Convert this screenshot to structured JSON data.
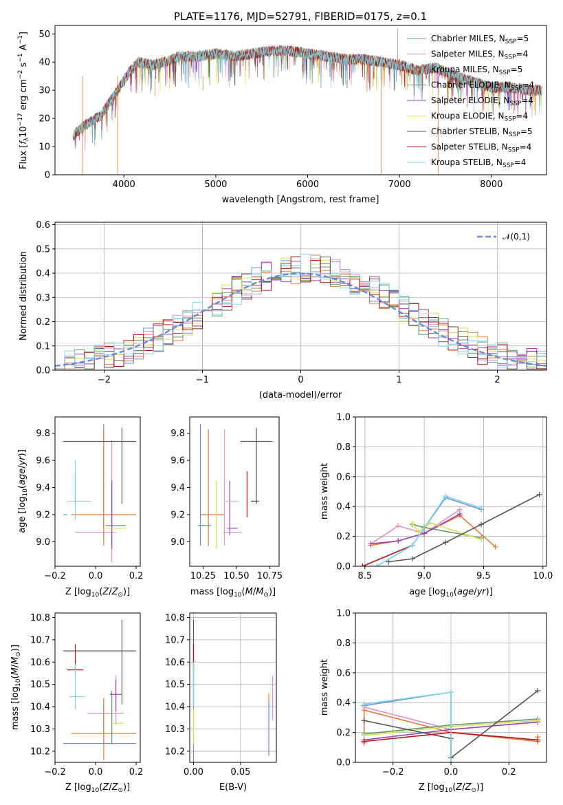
{
  "chart_data": [
    {
      "id": "spectrum",
      "type": "line",
      "title": "PLATE=1176, MJD=52791, FIBERID=0175, z=0.1",
      "xlabel": "wavelength [Angstrom, rest frame]",
      "ylabel": "Flux [f_λ10^-17 erg cm^-2 s^-1 A^-1]",
      "xlim": [
        3250,
        8600
      ],
      "ylim": [
        0,
        53
      ],
      "xticks": [
        4000,
        5000,
        6000,
        7000,
        8000
      ],
      "yticks": [
        0,
        10,
        20,
        30,
        40,
        50
      ],
      "legend_position": "upper right",
      "legend": [
        {
          "label": "Chabrier MILES, N",
          "sub": "SSP",
          "suffix": "=5",
          "color": "#6f8fdd"
        },
        {
          "label": "Salpeter MILES, N",
          "sub": "SSP",
          "suffix": "=4",
          "color": "#e690c0"
        },
        {
          "label": "Kroupa MILES, N",
          "sub": "SSP",
          "suffix": "=5",
          "color": "#e07b39"
        },
        {
          "label": "Chabrier ELODIE, N",
          "sub": "SSP",
          "suffix": "=4",
          "color": "#5c9a6a"
        },
        {
          "label": "Salpeter ELODIE, N",
          "sub": "SSP",
          "suffix": "=4",
          "color": "#a040c0"
        },
        {
          "label": "Kroupa ELODIE, N",
          "sub": "SSP",
          "suffix": "=4",
          "color": "#d8e050"
        },
        {
          "label": "Chabrier STELIB, N",
          "sub": "SSP",
          "suffix": "=5",
          "color": "#555555"
        },
        {
          "label": "Salpeter STELIB, N",
          "sub": "SSP",
          "suffix": "=4",
          "color": "#b01515"
        },
        {
          "label": "Kroupa STELIB, N",
          "sub": "SSP",
          "suffix": "=4",
          "color": "#80d8e8"
        }
      ],
      "continuum": {
        "x": [
          3450,
          3550,
          3650,
          3750,
          3850,
          3950,
          4050,
          4150,
          4300,
          4450,
          4600,
          4800,
          5000,
          5200,
          5400,
          5600,
          5800,
          6000,
          6200,
          6400,
          6600,
          6800,
          7000,
          7200,
          7400,
          7600,
          7800,
          8000,
          8200,
          8400,
          8550
        ],
        "y": [
          14,
          17,
          19,
          21,
          26,
          31,
          36,
          40,
          39,
          40,
          42,
          42,
          43,
          42,
          43,
          44,
          44,
          43,
          42,
          41,
          41,
          40,
          39,
          37,
          38,
          35,
          33,
          31,
          31,
          30,
          30
        ]
      }
    },
    {
      "id": "residuals",
      "type": "histogram",
      "xlabel": "(data-model)/error",
      "ylabel": "Normed distribution",
      "xlim": [
        -2.5,
        2.5
      ],
      "ylim": [
        0,
        0.61
      ],
      "xticks": [
        -2,
        -1,
        0,
        1,
        2
      ],
      "yticks": [
        0.0,
        0.1,
        0.2,
        0.3,
        0.4,
        0.5,
        0.6
      ],
      "grid": true,
      "reference": {
        "label": "𝒩(0,1)",
        "mean": 0,
        "sigma": 1,
        "color": "#6a8ad8"
      },
      "legend_position": "upper right",
      "bin_width": 0.1
    },
    {
      "id": "age_vs_Z",
      "type": "scatter",
      "xlabel": "Z [log10(Z/Z⊙)]",
      "ylabel": "age [log10(age/yr)]",
      "xlim": [
        -0.2,
        0.22
      ],
      "ylim": [
        8.82,
        9.92
      ],
      "xticks": [
        -0.2,
        0.0,
        0.2
      ],
      "xtick_labels": [
        "−0.2",
        "0.0",
        "0.2"
      ],
      "yticks": [
        9.0,
        9.2,
        9.4,
        9.6,
        9.8
      ],
      "errorbars": [
        {
          "x": 0.04,
          "xerr": 0.0,
          "y": 9.45,
          "yerr": 0.42,
          "color": "#6f8fdd"
        },
        {
          "x": -0.15,
          "xerr": 0.0,
          "y": 9.2,
          "yerr": 0.0,
          "color": "#6f8fdd"
        },
        {
          "x": 0.08,
          "xerr": 0.0,
          "y": 9.3,
          "yerr": 0.45,
          "color": "#e690c0"
        },
        {
          "x": 0.0,
          "xerr": 0.1,
          "y": 9.07,
          "yerr": 0.0,
          "color": "#e690c0"
        },
        {
          "x": 0.04,
          "xerr": 0.0,
          "y": 9.4,
          "yerr": 0.43,
          "color": "#e07b39"
        },
        {
          "x": 0.04,
          "xerr": 0.16,
          "y": 9.2,
          "yerr": 0.0,
          "color": "#e07b39"
        },
        {
          "x": 0.1,
          "xerr": 0.05,
          "y": 9.12,
          "yerr": 0.0,
          "color": "#5c9a6a"
        },
        {
          "x": 0.08,
          "xerr": 0.0,
          "y": 9.2,
          "yerr": 0.25,
          "color": "#a040c0"
        },
        {
          "x": 0.1,
          "xerr": 0.05,
          "y": 9.1,
          "yerr": 0.0,
          "color": "#d8e050"
        },
        {
          "x": 0.13,
          "xerr": 0.0,
          "y": 9.56,
          "yerr": 0.28,
          "color": "#555555"
        },
        {
          "x": 0.02,
          "xerr": 0.18,
          "y": 9.74,
          "yerr": 0.0,
          "color": "#555555"
        },
        {
          "x": -0.1,
          "xerr": 0.0,
          "y": 9.4,
          "yerr": 0.12,
          "color": "#b01515"
        },
        {
          "x": -0.1,
          "xerr": 0.0,
          "y": 9.38,
          "yerr": 0.22,
          "color": "#80d8e8"
        },
        {
          "x": -0.08,
          "xerr": 0.06,
          "y": 9.3,
          "yerr": 0.0,
          "color": "#80d8e8"
        }
      ]
    },
    {
      "id": "age_vs_mass",
      "type": "scatter",
      "xlabel": "mass [log10(M/M⊙)]",
      "ylabel": "",
      "xlim": [
        10.15,
        10.82
      ],
      "ylim": [
        8.82,
        9.92
      ],
      "xticks": [
        10.25,
        10.5,
        10.75
      ],
      "xtick_labels": [
        "10.25",
        "10.50",
        "10.75"
      ],
      "yticks": [
        9.0,
        9.2,
        9.4,
        9.6,
        9.8
      ],
      "errorbars": [
        {
          "x": 10.23,
          "xerr": 0.0,
          "y": 9.42,
          "yerr": 0.45,
          "color": "#6f8fdd"
        },
        {
          "x": 10.41,
          "xerr": 0.0,
          "y": 9.4,
          "yerr": 0.43,
          "color": "#e690c0"
        },
        {
          "x": 10.47,
          "xerr": 0.07,
          "y": 9.07,
          "yerr": 0.0,
          "color": "#e690c0"
        },
        {
          "x": 10.29,
          "xerr": 0.0,
          "y": 9.4,
          "yerr": 0.43,
          "color": "#e07b39"
        },
        {
          "x": 10.32,
          "xerr": 0.09,
          "y": 9.2,
          "yerr": 0.0,
          "color": "#e07b39"
        },
        {
          "x": 10.26,
          "xerr": 0.05,
          "y": 9.12,
          "yerr": 0.0,
          "color": "#5c9a6a"
        },
        {
          "x": 10.45,
          "xerr": 0.0,
          "y": 9.25,
          "yerr": 0.2,
          "color": "#a040c0"
        },
        {
          "x": 10.47,
          "xerr": 0.04,
          "y": 9.1,
          "yerr": 0.0,
          "color": "#a040c0"
        },
        {
          "x": 10.35,
          "xerr": 0.0,
          "y": 9.2,
          "yerr": 0.25,
          "color": "#d8e050"
        },
        {
          "x": 10.65,
          "xerr": 0.0,
          "y": 9.56,
          "yerr": 0.28,
          "color": "#555555"
        },
        {
          "x": 10.65,
          "xerr": 0.12,
          "y": 9.74,
          "yerr": 0.0,
          "color": "#555555"
        },
        {
          "x": 10.58,
          "xerr": 0.0,
          "y": 9.35,
          "yerr": 0.17,
          "color": "#b01515"
        },
        {
          "x": 10.64,
          "xerr": 0.03,
          "y": 9.3,
          "yerr": 0.0,
          "color": "#b01515"
        },
        {
          "x": 10.47,
          "xerr": 0.05,
          "y": 9.3,
          "yerr": 0.0,
          "color": "#80d8e8"
        }
      ]
    },
    {
      "id": "weight_vs_age",
      "type": "line",
      "xlabel": "age [log10(age/yr)]",
      "ylabel": "mass weight",
      "xlim": [
        8.42,
        10.03
      ],
      "ylim": [
        0,
        1
      ],
      "xticks": [
        8.5,
        9.0,
        9.5,
        10.0
      ],
      "xtick_labels": [
        "8.5",
        "9.0",
        "9.5",
        "10.0"
      ],
      "yticks": [
        0.0,
        0.2,
        0.4,
        0.6,
        0.8,
        1.0
      ],
      "grid": true,
      "series": [
        {
          "color": "#6f8fdd",
          "x": [
            8.6,
            8.9,
            9.18,
            9.48
          ],
          "y": [
            0.0,
            0.14,
            0.46,
            0.38
          ]
        },
        {
          "color": "#e690c0",
          "x": [
            8.55,
            8.78,
            9.0,
            9.3
          ],
          "y": [
            0.15,
            0.27,
            0.22,
            0.38
          ]
        },
        {
          "color": "#e07b39",
          "x": [
            8.55,
            8.78,
            9.0,
            9.3,
            9.6
          ],
          "y": [
            0.14,
            0.17,
            0.22,
            0.34,
            0.13
          ]
        },
        {
          "color": "#5c9a6a",
          "x": [
            8.9,
            9.0,
            9.48
          ],
          "y": [
            0.28,
            0.26,
            0.19
          ]
        },
        {
          "color": "#a040c0",
          "x": [
            8.55,
            8.78,
            9.0,
            9.3
          ],
          "y": [
            0.15,
            0.17,
            0.22,
            0.35
          ]
        },
        {
          "color": "#d8e050",
          "x": [
            8.9,
            8.95,
            9.05,
            9.48
          ],
          "y": [
            0.29,
            0.23,
            0.29,
            0.18
          ]
        },
        {
          "color": "#555555",
          "x": [
            8.7,
            8.9,
            9.18,
            9.48,
            9.97
          ],
          "y": [
            0.03,
            0.05,
            0.16,
            0.28,
            0.48
          ]
        },
        {
          "color": "#b01515",
          "x": [
            8.48,
            8.9
          ],
          "y": [
            0.0,
            0.14
          ]
        },
        {
          "color": "#80d8e8",
          "x": [
            8.6,
            8.9,
            9.18,
            9.48
          ],
          "y": [
            0.0,
            0.14,
            0.47,
            0.39
          ]
        }
      ]
    },
    {
      "id": "mass_vs_Z",
      "type": "scatter",
      "xlabel": "Z [log10(Z/Z⊙)]",
      "ylabel": "mass [log10(M/M⊙)]",
      "xlim": [
        -0.2,
        0.22
      ],
      "ylim": [
        10.15,
        10.82
      ],
      "xticks": [
        -0.2,
        0.0,
        0.2
      ],
      "xtick_labels": [
        "−0.2",
        "0.0",
        "0.2"
      ],
      "yticks": [
        10.2,
        10.3,
        10.4,
        10.5,
        10.6,
        10.7,
        10.8
      ],
      "errorbars": [
        {
          "x": 0.02,
          "xerr": 0.18,
          "y": 10.235,
          "yerr": 0.0,
          "color": "#6f8fdd"
        },
        {
          "x": 0.04,
          "xerr": 0.0,
          "y": 10.33,
          "yerr": 0.1,
          "color": "#6f8fdd"
        },
        {
          "x": 0.05,
          "xerr": 0.09,
          "y": 10.37,
          "yerr": 0.0,
          "color": "#e690c0"
        },
        {
          "x": 0.1,
          "xerr": 0.0,
          "y": 10.43,
          "yerr": 0.11,
          "color": "#e690c0"
        },
        {
          "x": 0.04,
          "xerr": 0.16,
          "y": 10.28,
          "yerr": 0.0,
          "color": "#e07b39"
        },
        {
          "x": 0.04,
          "xerr": 0.0,
          "y": 10.3,
          "yerr": 0.14,
          "color": "#e07b39"
        },
        {
          "x": 0.08,
          "xerr": 0.0,
          "y": 10.35,
          "yerr": 0.12,
          "color": "#5c9a6a"
        },
        {
          "x": 0.1,
          "xerr": 0.03,
          "y": 10.455,
          "yerr": 0.0,
          "color": "#a040c0"
        },
        {
          "x": 0.1,
          "xerr": 0.0,
          "y": 10.45,
          "yerr": 0.07,
          "color": "#a040c0"
        },
        {
          "x": 0.11,
          "xerr": 0.03,
          "y": 10.325,
          "yerr": 0.0,
          "color": "#d8e050"
        },
        {
          "x": 0.13,
          "xerr": 0.0,
          "y": 10.6,
          "yerr": 0.19,
          "color": "#555555"
        },
        {
          "x": 0.02,
          "xerr": 0.18,
          "y": 10.65,
          "yerr": 0.0,
          "color": "#555555"
        },
        {
          "x": -0.1,
          "xerr": 0.04,
          "y": 10.565,
          "yerr": 0.0,
          "color": "#b01515"
        },
        {
          "x": -0.1,
          "xerr": 0.0,
          "y": 10.61,
          "yerr": 0.07,
          "color": "#b01515"
        },
        {
          "x": -0.1,
          "xerr": 0.0,
          "y": 10.49,
          "yerr": 0.1,
          "color": "#80d8e8"
        },
        {
          "x": -0.09,
          "xerr": 0.04,
          "y": 10.445,
          "yerr": 0.0,
          "color": "#80d8e8"
        }
      ]
    },
    {
      "id": "mass_vs_ebv",
      "type": "scatter",
      "xlabel": "E(B-V)",
      "ylabel": "",
      "xlim": [
        -0.004,
        0.088
      ],
      "ylim": [
        10.15,
        10.82
      ],
      "xticks": [
        0.0,
        0.05
      ],
      "xtick_labels": [
        "0.00",
        "0.05"
      ],
      "yticks": [
        10.2,
        10.3,
        10.4,
        10.5,
        10.6,
        10.7,
        10.8
      ],
      "grid": true,
      "errorbars": [
        {
          "x": 0.0,
          "xerr": 0.0,
          "y": 10.36,
          "yerr": 0.28,
          "color": "#6f8fdd"
        },
        {
          "x": 0.0,
          "xerr": 0.0,
          "y": 10.6,
          "yerr": 0.19,
          "color": "#555555"
        },
        {
          "x": 0.0,
          "xerr": 0.0,
          "y": 10.62,
          "yerr": 0.06,
          "color": "#b01515"
        },
        {
          "x": 0.0,
          "xerr": 0.0,
          "y": 10.5,
          "yerr": 0.1,
          "color": "#80d8e8"
        },
        {
          "x": 0.0,
          "xerr": 0.0,
          "y": 10.31,
          "yerr": 0.08,
          "color": "#d8e050"
        },
        {
          "x": 0.08,
          "xerr": 0.0,
          "y": 10.32,
          "yerr": 0.14,
          "color": "#e07b39"
        },
        {
          "x": 0.08,
          "xerr": 0.0,
          "y": 10.3,
          "yerr": 0.12,
          "color": "#6f8fdd"
        },
        {
          "x": 0.084,
          "xerr": 0.0,
          "y": 10.44,
          "yerr": 0.1,
          "color": "#e690c0"
        }
      ]
    },
    {
      "id": "weight_vs_Z",
      "type": "line",
      "xlabel": "Z [log10(Z/Z⊙)]",
      "ylabel": "mass weight",
      "xlim": [
        -0.33,
        0.33
      ],
      "ylim": [
        0,
        1
      ],
      "xticks": [
        -0.2,
        0.0,
        0.2
      ],
      "xtick_labels": [
        "−0.2",
        "0.0",
        "0.2"
      ],
      "yticks": [
        0.0,
        0.2,
        0.4,
        0.6,
        0.8,
        1.0
      ],
      "grid": true,
      "series": [
        {
          "color": "#6f8fdd",
          "x": [
            -0.3,
            -0.3,
            0.0,
            0.0
          ],
          "y": [
            0.38,
            0.38,
            0.47,
            0.0
          ]
        },
        {
          "color": "#e690c0",
          "x": [
            -0.3,
            0.0,
            0.3
          ],
          "y": [
            0.37,
            0.22,
            0.27
          ]
        },
        {
          "color": "#e07b39",
          "x": [
            -0.3,
            -0.3,
            0.0,
            0.3,
            0.3
          ],
          "y": [
            0.13,
            0.35,
            0.2,
            0.14,
            0.17
          ]
        },
        {
          "color": "#5c9a6a",
          "x": [
            -0.3,
            0.0,
            0.3
          ],
          "y": [
            0.19,
            0.25,
            0.29
          ]
        },
        {
          "color": "#a040c0",
          "x": [
            -0.3,
            0.0,
            0.3
          ],
          "y": [
            0.15,
            0.22,
            0.27
          ]
        },
        {
          "color": "#d8e050",
          "x": [
            -0.3,
            0.0,
            0.3
          ],
          "y": [
            0.18,
            0.24,
            0.28
          ]
        },
        {
          "color": "#555555",
          "x": [
            -0.3,
            0.0,
            0.0,
            0.3
          ],
          "y": [
            0.28,
            0.16,
            0.03,
            0.48
          ]
        },
        {
          "color": "#b01515",
          "x": [
            -0.3,
            0.0,
            0.3
          ],
          "y": [
            0.14,
            0.2,
            0.15
          ]
        },
        {
          "color": "#80d8e8",
          "x": [
            -0.3,
            0.0,
            0.0
          ],
          "y": [
            0.39,
            0.47,
            0.0
          ]
        }
      ]
    }
  ]
}
